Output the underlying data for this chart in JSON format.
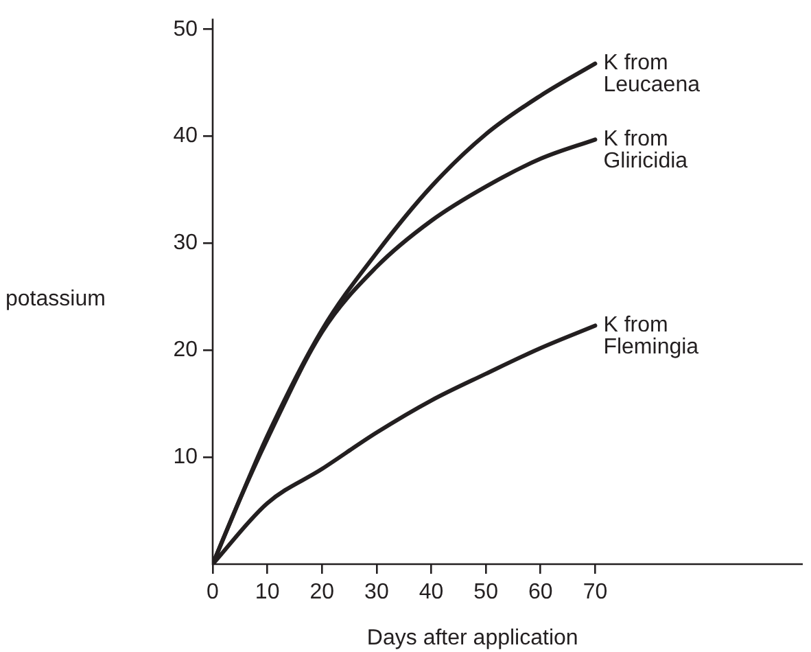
{
  "chart_data": {
    "type": "line",
    "xlabel": "Days after application",
    "ylabel": "potassium",
    "xlim": [
      0,
      108
    ],
    "ylim": [
      0,
      51
    ],
    "xticks": [
      0,
      10,
      20,
      30,
      40,
      50,
      60,
      70
    ],
    "yticks": [
      10,
      20,
      30,
      40,
      50
    ],
    "grid": false,
    "legend": false,
    "marker": "none",
    "line_style": "solid",
    "series": [
      {
        "name": "K from Leucaena",
        "color": "#231f20",
        "x": [
          0,
          5,
          10,
          20,
          30,
          40,
          50,
          60,
          70
        ],
        "values": [
          0,
          6.1,
          12.0,
          21.9,
          29.1,
          35.3,
          40.2,
          43.8,
          46.8
        ]
      },
      {
        "name": "K from Gliricidia",
        "color": "#231f20",
        "x": [
          0,
          5,
          10,
          20,
          30,
          40,
          50,
          60,
          70
        ],
        "values": [
          0,
          6.1,
          11.7,
          21.7,
          27.8,
          32.1,
          35.3,
          37.9,
          39.7
        ]
      },
      {
        "name": "K from Flemingia",
        "color": "#231f20",
        "x": [
          0,
          10,
          20,
          30,
          40,
          50,
          60,
          70
        ],
        "values": [
          0,
          5.7,
          8.9,
          12.3,
          15.3,
          17.8,
          20.2,
          22.3
        ]
      }
    ]
  }
}
